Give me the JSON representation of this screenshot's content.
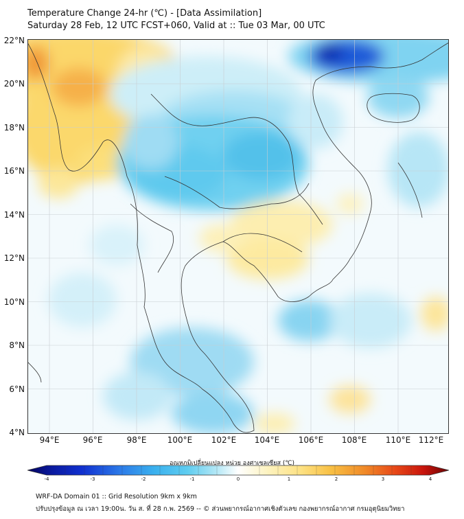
{
  "title_line1": "Temperature Change 24-hr (℃) - [Data Assimilation]",
  "title_line2": "Saturday 28 Feb, 12 UTC FCST+060, Valid at :: Tue 03 Mar, 00 UTC",
  "lat_labels": [
    "22°N",
    "20°N",
    "18°N",
    "16°N",
    "14°N",
    "12°N",
    "10°N",
    "8°N",
    "6°N",
    "4°N"
  ],
  "lon_labels": [
    "94°E",
    "96°E",
    "98°E",
    "100°E",
    "102°E",
    "104°E",
    "106°E",
    "108°E",
    "110°E",
    "112°E"
  ],
  "colorbar": {
    "title": "อุณหภูมิเปลี่ยนแปลง หน่วย องศาเซลเซียส (℃)",
    "ticks": [
      "-4",
      "-3",
      "-2",
      "-1",
      "0",
      "1",
      "2",
      "3",
      "4"
    ]
  },
  "footer_line1": "WRF-DA Domain 01 :: Grid Resolution 9km x 9km",
  "footer_line2": "ปรับปรุงข้อมูล ณ เวลา 19:00น. วัน ส. ที่ 28 ก.พ. 2569 -- © ส่วนพยากรณ์อากาศเชิงตัวเลข กองพยากรณ์อากาศ กรมอุตุนิยมวิทยา"
}
